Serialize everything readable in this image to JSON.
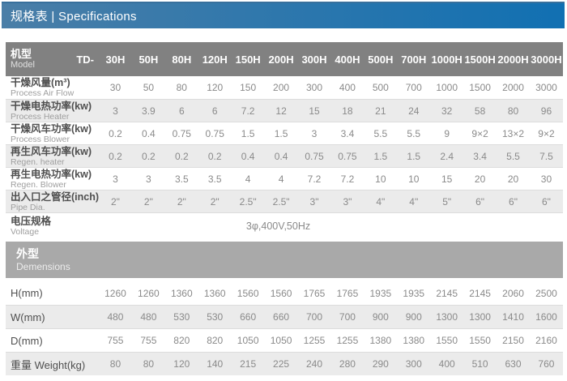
{
  "title": {
    "text": "规格表 | Specifications"
  },
  "colors": {
    "header_blue_left": "#4a7ea7",
    "header_blue_right": "#1170b2",
    "header_blue_top": "#38709c",
    "band_grey": "#818181",
    "section_grey": "#a9a9a9",
    "row_shade": "#ebebeb",
    "value_text": "#8a8a8a",
    "label_text": "#4f4f4f"
  },
  "table": {
    "model_label_cn": "机型",
    "model_label_en": "Model",
    "model_prefix": "TD-",
    "columns": [
      "30H",
      "50H",
      "80H",
      "120H",
      "150H",
      "200H",
      "300H",
      "400H",
      "500H",
      "700H",
      "1000H",
      "1500H",
      "2000H",
      "3000H"
    ],
    "spec_rows": [
      {
        "label_cn": "干燥风量(m³)",
        "label_en": "Process Air Flow",
        "values": [
          "30",
          "50",
          "80",
          "120",
          "150",
          "200",
          "300",
          "400",
          "500",
          "700",
          "1000",
          "1500",
          "2000",
          "3000"
        ]
      },
      {
        "label_cn": "干燥电热功率(kw)",
        "label_en": "Process Heater",
        "values": [
          "3",
          "3.9",
          "6",
          "6",
          "7.2",
          "12",
          "15",
          "18",
          "21",
          "24",
          "32",
          "58",
          "80",
          "96"
        ]
      },
      {
        "label_cn": "干燥风车功率(kw)",
        "label_en": "Process Blower",
        "values": [
          "0.2",
          "0.4",
          "0.75",
          "0.75",
          "1.5",
          "1.5",
          "3",
          "3.4",
          "5.5",
          "5.5",
          "9",
          "9×2",
          "13×2",
          "9×2"
        ]
      },
      {
        "label_cn": "再生风车功率(kw)",
        "label_en": "Regen. heater",
        "values": [
          "0.2",
          "0.2",
          "0.2",
          "0.2",
          "0.4",
          "0.4",
          "0.75",
          "0.75",
          "1.5",
          "1.5",
          "2.4",
          "3.4",
          "5.5",
          "7.5"
        ]
      },
      {
        "label_cn": "再生电热功率(kw)",
        "label_en": "Regen. Blower",
        "values": [
          "3",
          "3",
          "3.5",
          "3.5",
          "4",
          "4",
          "7.2",
          "7.2",
          "10",
          "10",
          "15",
          "20",
          "20",
          "30"
        ]
      },
      {
        "label_cn": "出入口之管径(inch)",
        "label_en": "Pipe Dia.",
        "values": [
          "2\"",
          "2\"",
          "2\"",
          "2\"",
          "2.5\"",
          "2.5\"",
          "3\"",
          "3\"",
          "4\"",
          "4\"",
          "5\"",
          "6\"",
          "6\"",
          "6\""
        ]
      }
    ],
    "voltage_row": {
      "label_cn": "电压规格",
      "label_en": "Voltage",
      "value": "3φ,400V,50Hz"
    },
    "dimensions_header": {
      "cn": "外型",
      "en": "Demensions"
    },
    "dimension_rows": [
      {
        "label": "H(mm)",
        "values": [
          "1260",
          "1260",
          "1360",
          "1360",
          "1560",
          "1560",
          "1765",
          "1765",
          "1935",
          "1935",
          "2145",
          "2145",
          "2060",
          "2500"
        ]
      },
      {
        "label": "W(mm)",
        "values": [
          "480",
          "480",
          "530",
          "530",
          "660",
          "660",
          "700",
          "700",
          "900",
          "900",
          "1300",
          "1300",
          "1410",
          "1600"
        ]
      },
      {
        "label": "D(mm)",
        "values": [
          "755",
          "755",
          "820",
          "820",
          "1050",
          "1050",
          "1255",
          "1255",
          "1380",
          "1380",
          "1550",
          "1550",
          "2150",
          "2160"
        ]
      },
      {
        "label": "重量 Weight(kg)",
        "values": [
          "80",
          "80",
          "120",
          "140",
          "215",
          "225",
          "240",
          "280",
          "290",
          "300",
          "400",
          "510",
          "630",
          "760"
        ]
      }
    ]
  }
}
